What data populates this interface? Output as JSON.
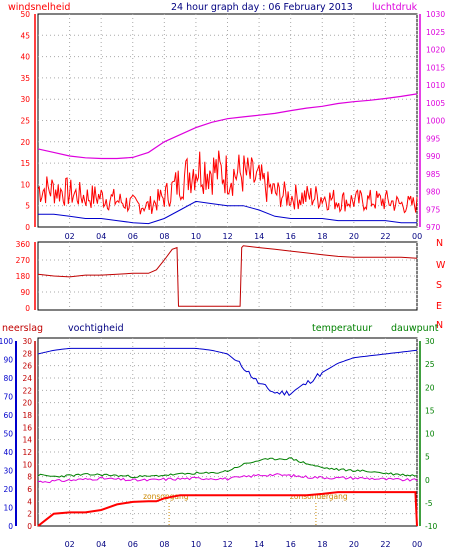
{
  "header": {
    "title": "24 hour graph day : 06 February 2013",
    "windsnelheid_label": "windsnelheid",
    "luchtdruk_label": "luchtdruk",
    "neerslag_label": "neerslag",
    "vochtigheid_label": "vochtigheid",
    "temperatuur_label": "temperatuur",
    "dauwpunt_label": "dauwpunt"
  },
  "colors": {
    "red": "#ff0000",
    "darkred": "#c00000",
    "magenta": "#dd00dd",
    "blue": "#0000cc",
    "green": "#008000",
    "orange": "#cc8800",
    "grid": "#aaaaaa"
  },
  "chart_data": [
    {
      "type": "line",
      "name": "wind-pressure",
      "x_ticks": [
        "02",
        "04",
        "06",
        "08",
        "10",
        "12",
        "14",
        "16",
        "18",
        "20",
        "22",
        "00"
      ],
      "left_axis": {
        "ticks": [
          0,
          5,
          10,
          15,
          20,
          25,
          30,
          35,
          40,
          45,
          50
        ],
        "ylim": [
          0,
          50
        ]
      },
      "right_axis": {
        "ticks": [
          970,
          975,
          980,
          985,
          990,
          995,
          1000,
          1005,
          1010,
          1015,
          1020,
          1025,
          1030
        ],
        "ylim": [
          970,
          1030
        ]
      },
      "series": [
        {
          "name": "windsnelheid",
          "x": [
            0,
            1,
            2,
            3,
            4,
            5,
            6,
            7,
            8,
            9,
            10,
            11,
            12,
            13,
            14,
            15,
            16,
            17,
            18,
            19,
            20,
            21,
            22,
            23,
            24
          ],
          "y": [
            3,
            3,
            2.5,
            2,
            2,
            1.5,
            1,
            0.8,
            2,
            4,
            6,
            5.5,
            5,
            5,
            4,
            2.5,
            2,
            2,
            2,
            1.5,
            1.5,
            1.5,
            1.5,
            1,
            1
          ]
        },
        {
          "name": "luchtdruk",
          "x": [
            0,
            1,
            2,
            3,
            4,
            5,
            6,
            7,
            8,
            9,
            10,
            11,
            12,
            13,
            14,
            15,
            16,
            17,
            18,
            19,
            20,
            21,
            22,
            23,
            24
          ],
          "y": [
            992,
            991,
            990,
            989.5,
            989.3,
            989.3,
            989.6,
            991,
            994,
            996,
            998,
            999.5,
            1000.5,
            1001,
            1001.5,
            1002,
            1002.8,
            1003.5,
            1004,
            1004.8,
            1005.3,
            1005.7,
            1006.2,
            1006.8,
            1007.5
          ]
        }
      ]
    },
    {
      "type": "line",
      "name": "wind-direction",
      "left_axis": {
        "ticks": [
          0,
          90,
          180,
          270,
          360
        ],
        "ylim": [
          0,
          360
        ]
      },
      "right_labels": [
        "N",
        "W",
        "S",
        "E",
        "N"
      ],
      "series": [
        {
          "name": "windrichting",
          "x": [
            0,
            1,
            2,
            3,
            4,
            5,
            6,
            7,
            7.5,
            8,
            8.5,
            8.8,
            8.9,
            9,
            10,
            11,
            12,
            12.8,
            12.9,
            13,
            14,
            15,
            16,
            17,
            18,
            19,
            20,
            21,
            22,
            23,
            24
          ],
          "y": [
            190,
            180,
            175,
            185,
            185,
            190,
            195,
            195,
            215,
            270,
            330,
            340,
            10,
            10,
            10,
            10,
            10,
            10,
            340,
            350,
            340,
            330,
            320,
            310,
            300,
            290,
            285,
            285,
            285,
            285,
            280
          ]
        }
      ]
    },
    {
      "type": "line",
      "name": "rain-humidity-temperature",
      "left_axis_rain": {
        "ticks": [
          0,
          2,
          4,
          6,
          8,
          10,
          12,
          14,
          16,
          18,
          20,
          22,
          24,
          26,
          28,
          30
        ],
        "ylim": [
          0,
          30
        ]
      },
      "left_axis_humidity": {
        "ticks": [
          0,
          10,
          20,
          30,
          40,
          50,
          60,
          70,
          80,
          90,
          100
        ],
        "ylim": [
          0,
          100
        ]
      },
      "right_axis_temperature": {
        "ticks": [
          -10,
          -5,
          0,
          5,
          10,
          15,
          20,
          25,
          30
        ],
        "ylim": [
          -10,
          30
        ]
      },
      "annotations": [
        {
          "text": "zonsopgang",
          "x": 8.3
        },
        {
          "text": "zonsondergang",
          "x": 17.6
        }
      ],
      "series": [
        {
          "name": "neerslag",
          "x": [
            0,
            0.5,
            1,
            2,
            3,
            4,
            5,
            6,
            7,
            7.5,
            8,
            9,
            10,
            11,
            12,
            13,
            14,
            15,
            16,
            17,
            18,
            19,
            20,
            21,
            22,
            23,
            23.9,
            24
          ],
          "y": [
            0,
            1,
            2,
            2.2,
            2.2,
            2.6,
            3.5,
            3.9,
            4,
            4,
            4.5,
            5,
            5,
            5,
            5,
            5,
            5,
            5,
            5,
            5,
            5.2,
            5.5,
            5.5,
            5.5,
            5.5,
            5.5,
            5.5,
            0
          ]
        },
        {
          "name": "vochtigheid",
          "x": [
            0,
            1,
            2,
            3,
            4,
            5,
            6,
            7,
            8,
            9,
            10,
            11,
            12,
            13,
            14,
            15,
            16,
            17,
            18,
            19,
            20,
            21,
            22,
            23,
            24
          ],
          "y": [
            93,
            95,
            96,
            96,
            96,
            96,
            96,
            96,
            96,
            96,
            96,
            95,
            93,
            86,
            77,
            72,
            72,
            77,
            83,
            88,
            91,
            92,
            93,
            94,
            95
          ]
        },
        {
          "name": "temperatuur",
          "x": [
            0,
            1,
            2,
            3,
            4,
            5,
            6,
            7,
            8,
            9,
            10,
            11,
            12,
            13,
            14,
            15,
            16,
            17,
            18,
            19,
            20,
            21,
            22,
            23,
            24
          ],
          "y": [
            1,
            0.7,
            0.9,
            1.1,
            1.1,
            0.9,
            0.7,
            0.7,
            1.0,
            1.2,
            1.4,
            1.4,
            1.9,
            3.3,
            4.2,
            4.5,
            4.6,
            3.5,
            2.6,
            2.2,
            2.0,
            1.8,
            1.4,
            1.1,
            0.9
          ]
        },
        {
          "name": "dauwpunt",
          "x": [
            0,
            1,
            2,
            3,
            4,
            5,
            6,
            7,
            8,
            9,
            10,
            11,
            12,
            13,
            14,
            15,
            16,
            17,
            18,
            19,
            20,
            21,
            22,
            23,
            24
          ],
          "y": [
            -0.4,
            -0.3,
            -0.1,
            0.1,
            0.3,
            0.1,
            -0.1,
            -0.1,
            0.1,
            0.2,
            0.3,
            0.3,
            0.2,
            0.6,
            1.0,
            1.1,
            0.9,
            0.6,
            0.5,
            0.4,
            0.4,
            0.3,
            0.1,
            0.0,
            -0.1
          ]
        }
      ]
    }
  ]
}
